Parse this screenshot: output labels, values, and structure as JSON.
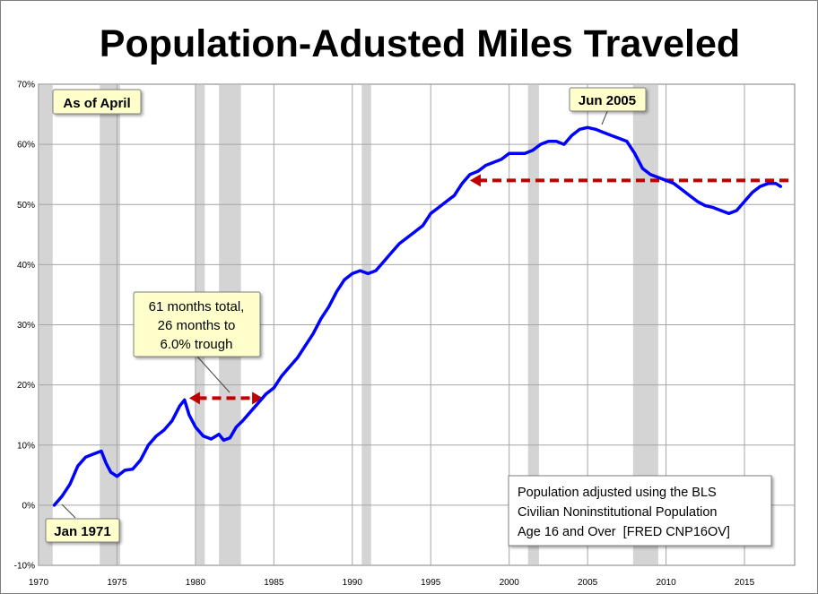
{
  "chart_data": {
    "type": "line",
    "title": "Population-Adusted Miles Traveled",
    "xlabel": "",
    "ylabel": "",
    "xlim": [
      1970,
      2018.2
    ],
    "ylim": [
      -10,
      70
    ],
    "x_ticks": [
      1970,
      1975,
      1980,
      1985,
      1990,
      1995,
      2000,
      2005,
      2010,
      2015
    ],
    "y_ticks": [
      -10,
      0,
      10,
      20,
      30,
      40,
      50,
      60,
      70
    ],
    "y_tick_labels": [
      "-10%",
      "0%",
      "10%",
      "20%",
      "30%",
      "40%",
      "50%",
      "60%",
      "70%"
    ],
    "grid": true,
    "recession_bands": [
      {
        "start": 1969.9,
        "end": 1970.9
      },
      {
        "start": 1973.9,
        "end": 1975.2
      },
      {
        "start": 1980.0,
        "end": 1980.6
      },
      {
        "start": 1981.5,
        "end": 1982.9
      },
      {
        "start": 1990.6,
        "end": 1991.2
      },
      {
        "start": 2001.2,
        "end": 2001.9
      },
      {
        "start": 2007.9,
        "end": 2009.5
      }
    ],
    "series": [
      {
        "name": "Population-Adjusted Miles Traveled",
        "color": "#0000ff",
        "x": [
          1971.0,
          1971.5,
          1972.0,
          1972.5,
          1973.0,
          1973.5,
          1974.0,
          1974.3,
          1974.6,
          1975.0,
          1975.5,
          1976.0,
          1976.5,
          1977.0,
          1977.5,
          1978.0,
          1978.5,
          1979.0,
          1979.3,
          1979.6,
          1980.0,
          1980.5,
          1981.0,
          1981.5,
          1981.8,
          1982.2,
          1982.6,
          1983.0,
          1983.5,
          1984.0,
          1984.5,
          1985.0,
          1985.5,
          1986.0,
          1986.5,
          1987.0,
          1987.5,
          1988.0,
          1988.5,
          1989.0,
          1989.5,
          1990.0,
          1990.5,
          1991.0,
          1991.5,
          1992.0,
          1992.5,
          1993.0,
          1993.5,
          1994.0,
          1994.5,
          1995.0,
          1995.5,
          1996.0,
          1996.5,
          1997.0,
          1997.5,
          1998.0,
          1998.5,
          1999.0,
          1999.5,
          2000.0,
          2000.5,
          2001.0,
          2001.5,
          2002.0,
          2002.5,
          2003.0,
          2003.5,
          2004.0,
          2004.5,
          2005.0,
          2005.5,
          2006.0,
          2006.5,
          2007.0,
          2007.5,
          2008.0,
          2008.5,
          2009.0,
          2009.5,
          2010.0,
          2010.5,
          2011.0,
          2011.5,
          2012.0,
          2012.5,
          2013.0,
          2013.5,
          2014.0,
          2014.5,
          2015.0,
          2015.5,
          2016.0,
          2016.5,
          2017.0,
          2017.3
        ],
        "values": [
          0.0,
          1.5,
          3.5,
          6.5,
          8.0,
          8.5,
          9.0,
          7.0,
          5.5,
          4.8,
          5.8,
          6.0,
          7.5,
          10.0,
          11.5,
          12.5,
          14.0,
          16.5,
          17.5,
          15.0,
          13.0,
          11.5,
          11.0,
          11.8,
          10.8,
          11.2,
          13.0,
          14.0,
          15.5,
          17.0,
          18.5,
          19.5,
          21.5,
          23.0,
          24.5,
          26.5,
          28.5,
          31.0,
          33.0,
          35.5,
          37.5,
          38.5,
          39.0,
          38.5,
          39.0,
          40.5,
          42.0,
          43.5,
          44.5,
          45.5,
          46.5,
          48.5,
          49.5,
          50.5,
          51.5,
          53.5,
          55.0,
          55.5,
          56.5,
          57.0,
          57.5,
          58.5,
          58.5,
          58.5,
          59.0,
          60.0,
          60.5,
          60.5,
          60.0,
          61.5,
          62.5,
          62.8,
          62.5,
          62.0,
          61.5,
          61.0,
          60.5,
          58.5,
          56.0,
          55.0,
          54.5,
          54.0,
          53.5,
          52.5,
          51.5,
          50.5,
          49.8,
          49.5,
          49.0,
          48.5,
          49.0,
          50.5,
          52.0,
          53.0,
          53.5,
          53.5,
          53.0
        ]
      }
    ],
    "reference_arrows": [
      {
        "name": "1979 recovery",
        "from_x": 2.5,
        "to_x": 2.9,
        "x_from": 1979.6,
        "x_to": 1984.3,
        "y": 17.8,
        "color": "#c00000"
      },
      {
        "name": "2005 recovery",
        "x_from": 2017.8,
        "x_to": 1997.5,
        "y": 54.0,
        "color": "#c00000"
      }
    ],
    "annotations": {
      "as_of": "As of April",
      "peak_label": "Jun 2005",
      "start_label": "Jan 1971",
      "recovery_lines": [
        "61 months total,",
        "26 months to",
        "6.0% trough"
      ],
      "source_lines": [
        "Population adjusted using the BLS",
        "Civilian Noninstitutional Population",
        "Age 16 and Over  [FRED CNP16OV]"
      ]
    }
  }
}
